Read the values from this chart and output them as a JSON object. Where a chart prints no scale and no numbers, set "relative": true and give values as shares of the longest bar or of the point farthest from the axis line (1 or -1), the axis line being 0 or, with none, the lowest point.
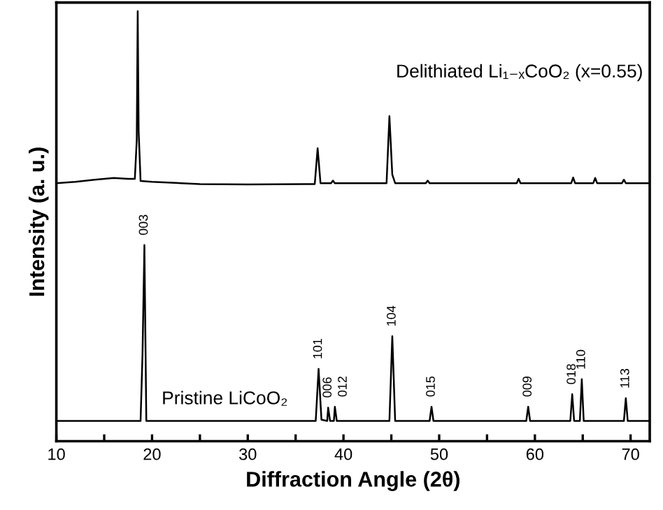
{
  "chart_data": {
    "type": "line",
    "relative": true,
    "xlabel": "Diffraction Angle (2θ)",
    "ylabel": "Intensity (a. u.)",
    "xlim": [
      10,
      72
    ],
    "xticks": [
      10,
      {
        "value": 15,
        "label": null
      },
      20,
      {
        "value": 25,
        "label": null
      },
      30,
      {
        "value": 35,
        "label": null
      },
      40,
      {
        "value": 45,
        "label": null
      },
      50,
      {
        "value": 55,
        "label": null
      },
      60,
      {
        "value": 65,
        "label": null
      },
      70
    ],
    "tick_labels": "x",
    "grid": false,
    "legend": false,
    "marker": "none",
    "line_style": "solid",
    "series": [
      {
        "name": "Delithiated Li₁₋ₓCoO₂ (x=0.55)",
        "color": "#000000",
        "x": [
          10,
          12,
          14,
          16,
          17.5,
          18.2,
          18.4,
          18.5,
          18.6,
          18.8,
          20,
          25,
          30,
          36,
          37.0,
          37.3,
          37.6,
          38.7,
          38.9,
          39.1,
          44.5,
          44.8,
          45.1,
          45.4,
          48.6,
          48.8,
          49.0,
          58.1,
          58.3,
          58.5,
          63.8,
          64.0,
          64.2,
          66.1,
          66.3,
          66.5,
          69.1,
          69.3,
          69.5,
          72
        ],
        "values": [
          0.6,
          0.603,
          0.608,
          0.612,
          0.61,
          0.61,
          0.7,
          1,
          0.72,
          0.605,
          0.603,
          0.598,
          0.597,
          0.598,
          0.598,
          0.681,
          0.6,
          0.6,
          0.606,
          0.6,
          0.6,
          0.756,
          0.62,
          0.6,
          0.6,
          0.606,
          0.6,
          0.6,
          0.61,
          0.6,
          0.6,
          0.613,
          0.6,
          0.6,
          0.612,
          0.6,
          0.6,
          0.608,
          0.6,
          0.6
        ]
      },
      {
        "name": "Pristine LiCoO₂",
        "color": "#000000",
        "x": [
          10,
          18.8,
          19.0,
          19.2,
          19.4,
          37.1,
          37.4,
          37.7,
          38.3,
          38.4,
          38.6,
          39.0,
          39.1,
          39.3,
          44.8,
          45.1,
          45.4,
          49.0,
          49.2,
          49.4,
          59.1,
          59.3,
          59.5,
          63.7,
          63.9,
          64.1,
          64.7,
          64.9,
          65.1,
          69.3,
          69.5,
          69.7,
          72
        ],
        "values": [
          0.047,
          0.047,
          0.2,
          0.456,
          0.047,
          0.047,
          0.168,
          0.05,
          0.047,
          0.078,
          0.047,
          0.047,
          0.08,
          0.047,
          0.047,
          0.244,
          0.047,
          0.047,
          0.08,
          0.047,
          0.047,
          0.08,
          0.047,
          0.047,
          0.109,
          0.047,
          0.047,
          0.144,
          0.047,
          0.047,
          0.1,
          0.047,
          0.047
        ]
      }
    ],
    "annotations": [
      {
        "text": "003",
        "x": 19.2,
        "y": 0.456
      },
      {
        "text": "101",
        "x": 37.4,
        "y": 0.168
      },
      {
        "text": "006",
        "x": 38.4,
        "y": 0.078
      },
      {
        "text": "012",
        "x": 39.1,
        "y": 0.08
      },
      {
        "text": "104",
        "x": 45.1,
        "y": 0.244
      },
      {
        "text": "015",
        "x": 49.2,
        "y": 0.08
      },
      {
        "text": "009",
        "x": 59.3,
        "y": 0.08
      },
      {
        "text": "018",
        "x": 63.9,
        "y": 0.109
      },
      {
        "text": "110",
        "x": 64.9,
        "y": 0.144
      },
      {
        "text": "113",
        "x": 69.5,
        "y": 0.1
      }
    ]
  }
}
